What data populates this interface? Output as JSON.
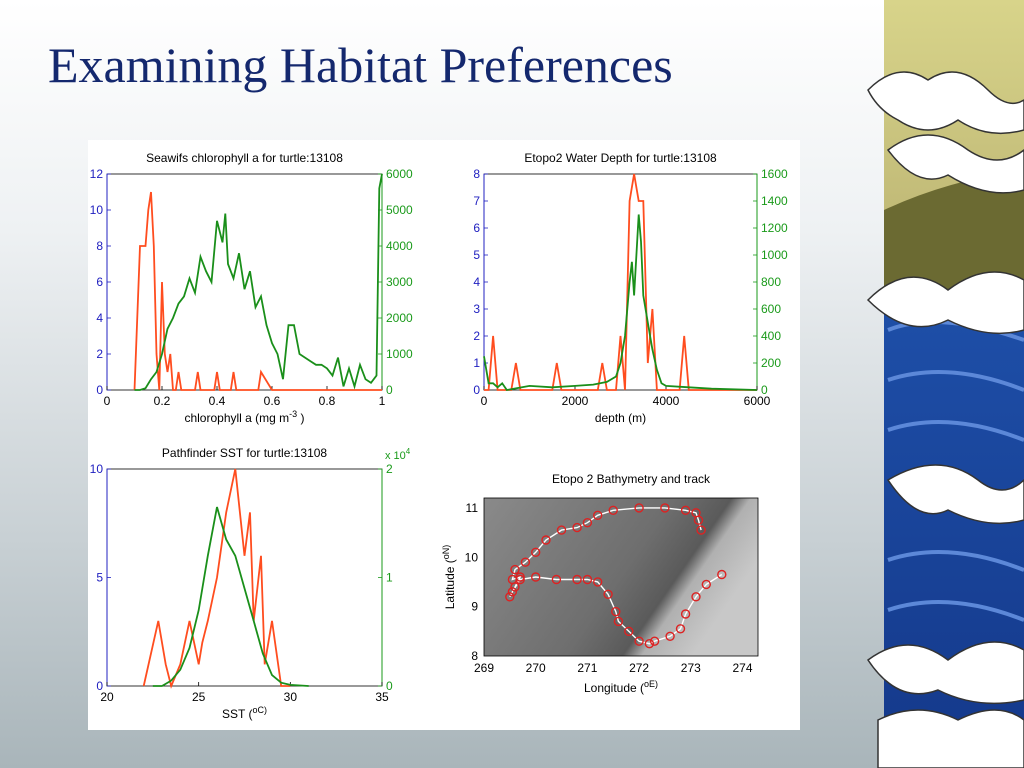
{
  "slide": {
    "title": "Examining Habitat Preferences"
  },
  "colors": {
    "title": "#14286e",
    "series_red": "#ff4d1f",
    "series_green": "#1a8f1a",
    "left_axis": "#2020c0",
    "right_axis": "#1a9a1a",
    "track": "#dd2222"
  },
  "chart_data": [
    {
      "type": "line",
      "title": "Seawifs chlorophyll a for turtle:13108",
      "xlabel": "chlorophyll a (mg m^-3 )",
      "xlim": [
        0,
        1
      ],
      "xticks": [
        "0",
        "0.2",
        "0.4",
        "0.6",
        "0.8",
        "1"
      ],
      "ylim_left": [
        0,
        12
      ],
      "yticks_left": [
        "0",
        "2",
        "4",
        "6",
        "8",
        "10",
        "12"
      ],
      "ylim_right": [
        0,
        6000
      ],
      "yticks_right": [
        "0",
        "1000",
        "2000",
        "3000",
        "4000",
        "5000",
        "6000"
      ],
      "series": [
        {
          "axis": "left",
          "color": "#ff4d1f",
          "x": [
            0.1,
            0.12,
            0.14,
            0.15,
            0.16,
            0.17,
            0.18,
            0.19,
            0.2,
            0.21,
            0.22,
            0.23,
            0.24,
            0.25,
            0.26,
            0.27,
            0.28,
            0.29,
            0.3,
            0.31,
            0.32,
            0.33,
            0.34,
            0.35,
            0.36,
            0.37,
            0.38,
            0.39,
            0.4,
            0.41,
            0.42,
            0.43,
            0.44,
            0.45,
            0.46,
            0.47,
            0.5,
            0.51,
            0.52,
            0.53,
            0.54,
            0.55,
            0.56,
            0.6,
            0.7,
            0.8,
            0.9,
            1.0
          ],
          "y": [
            0,
            8,
            8,
            10,
            11,
            8,
            2,
            0,
            6,
            2,
            1,
            2,
            0,
            0,
            1,
            0,
            0,
            0,
            0,
            0,
            0,
            1,
            0,
            0,
            0,
            0,
            0,
            0,
            1,
            0,
            0,
            0,
            0,
            0,
            1,
            0,
            0,
            0,
            0,
            0,
            0,
            0,
            1,
            0,
            0,
            0,
            0,
            0
          ]
        },
        {
          "axis": "right",
          "color": "#1a8f1a",
          "x": [
            0.1,
            0.12,
            0.14,
            0.16,
            0.18,
            0.2,
            0.22,
            0.24,
            0.26,
            0.28,
            0.3,
            0.32,
            0.34,
            0.36,
            0.38,
            0.4,
            0.42,
            0.43,
            0.44,
            0.46,
            0.48,
            0.5,
            0.52,
            0.54,
            0.56,
            0.58,
            0.6,
            0.62,
            0.64,
            0.66,
            0.68,
            0.7,
            0.72,
            0.74,
            0.76,
            0.78,
            0.8,
            0.82,
            0.84,
            0.86,
            0.88,
            0.9,
            0.92,
            0.94,
            0.96,
            0.98,
            0.99,
            1.0
          ],
          "y": [
            0,
            0,
            50,
            300,
            500,
            1000,
            1700,
            2000,
            2400,
            2600,
            3100,
            2700,
            3700,
            3300,
            3000,
            4700,
            4100,
            4900,
            3500,
            3100,
            3800,
            2800,
            3300,
            2300,
            2600,
            1800,
            1300,
            1000,
            300,
            1800,
            1800,
            1000,
            900,
            800,
            700,
            700,
            600,
            400,
            900,
            100,
            600,
            100,
            700,
            300,
            200,
            400,
            5600,
            6000
          ]
        }
      ]
    },
    {
      "type": "line",
      "title": "Etopo2 Water Depth for turtle:13108",
      "xlabel": "depth (m)",
      "xlim": [
        0,
        6000
      ],
      "xticks": [
        "0",
        "2000",
        "4000",
        "6000"
      ],
      "ylim_left": [
        0,
        8
      ],
      "yticks_left": [
        "0",
        "1",
        "2",
        "3",
        "4",
        "5",
        "6",
        "7",
        "8"
      ],
      "ylim_right": [
        0,
        1600
      ],
      "yticks_right": [
        "0",
        "200",
        "400",
        "600",
        "800",
        "1000",
        "1200",
        "1400",
        "1600"
      ],
      "series": [
        {
          "axis": "left",
          "color": "#ff4d1f",
          "x": [
            0,
            100,
            200,
            300,
            400,
            500,
            600,
            700,
            800,
            1500,
            1600,
            1700,
            2500,
            2600,
            2700,
            2900,
            3000,
            3100,
            3200,
            3300,
            3400,
            3500,
            3600,
            3700,
            3800,
            3900,
            4000,
            4100,
            4200,
            4300,
            4400,
            4500,
            4600,
            6000
          ],
          "y": [
            0,
            0,
            2,
            0,
            0,
            0,
            0,
            1,
            0,
            0,
            1,
            0,
            0,
            1,
            0,
            0,
            2,
            0,
            7,
            8,
            7,
            7,
            1,
            3,
            0,
            0,
            0,
            0,
            0,
            0,
            2,
            0,
            0,
            0
          ]
        },
        {
          "axis": "right",
          "color": "#1a8f1a",
          "x": [
            0,
            100,
            200,
            300,
            400,
            500,
            1000,
            1500,
            2000,
            2400,
            2700,
            2900,
            3000,
            3100,
            3200,
            3250,
            3300,
            3400,
            3450,
            3500,
            3600,
            3700,
            3800,
            3900,
            4000,
            4500,
            5000,
            6000
          ],
          "y": [
            250,
            50,
            50,
            20,
            50,
            0,
            30,
            20,
            30,
            40,
            60,
            100,
            200,
            400,
            800,
            950,
            700,
            1300,
            1100,
            700,
            500,
            300,
            150,
            50,
            30,
            20,
            10,
            0
          ]
        }
      ]
    },
    {
      "type": "line",
      "title": "Pathfinder SST for turtle:13108",
      "xlabel": "SST (^oC)",
      "xlim": [
        20,
        35
      ],
      "xticks": [
        "20",
        "25",
        "30",
        "35"
      ],
      "ylim_left": [
        0,
        10
      ],
      "yticks_left": [
        "0",
        "5",
        "10"
      ],
      "ylim_right": [
        0,
        2
      ],
      "yticks_right": [
        "0",
        "1",
        "2"
      ],
      "right_multiplier": "x 10^4",
      "series": [
        {
          "axis": "left",
          "color": "#ff4d1f",
          "x": [
            22,
            22.8,
            23.2,
            23.5,
            24,
            24.5,
            25,
            25.2,
            25.5,
            26,
            26.5,
            27,
            27.5,
            27.8,
            28,
            28.4,
            28.6,
            29,
            29.5,
            30
          ],
          "y": [
            0,
            3,
            1,
            0,
            1,
            3,
            1,
            2,
            3,
            5,
            8,
            10,
            6,
            8,
            3,
            6,
            1,
            3,
            0,
            0
          ]
        },
        {
          "axis": "right",
          "color": "#1a8f1a",
          "x": [
            22.5,
            23,
            23.5,
            24,
            24.5,
            25,
            25.5,
            26,
            26.5,
            27,
            27.5,
            28,
            28.5,
            29,
            29.5,
            30,
            31
          ],
          "y": [
            0,
            0,
            0.05,
            0.15,
            0.35,
            0.7,
            1.2,
            1.65,
            1.35,
            1.2,
            0.9,
            0.6,
            0.3,
            0.1,
            0.03,
            0.01,
            0
          ]
        }
      ]
    },
    {
      "type": "scatter",
      "title": "Etopo 2 Bathymetry and track",
      "xlabel": "Longitude (^oE)",
      "ylabel": "Latitude (^oN)",
      "xlim": [
        269,
        274.3
      ],
      "ylim": [
        8,
        11.2
      ],
      "xticks": [
        "269",
        "270",
        "271",
        "272",
        "273",
        "274"
      ],
      "yticks": [
        "8",
        "9",
        "10",
        "11"
      ],
      "track": {
        "color": "#dd2222",
        "lon": [
          273.6,
          273.3,
          273.1,
          272.9,
          272.8,
          272.6,
          272.3,
          272.2,
          272.0,
          271.8,
          271.6,
          271.55,
          271.4,
          271.2,
          271.0,
          270.8,
          270.4,
          270.0,
          269.7,
          269.55,
          269.5,
          269.6,
          269.7,
          269.55,
          269.6,
          269.8,
          270.0,
          270.2,
          270.5,
          270.8,
          271.0,
          271.2,
          271.5,
          272.0,
          272.5,
          272.9,
          273.1,
          273.15,
          273.2
        ],
        "lat": [
          9.65,
          9.45,
          9.2,
          8.85,
          8.55,
          8.4,
          8.3,
          8.25,
          8.3,
          8.5,
          8.7,
          8.9,
          9.25,
          9.5,
          9.55,
          9.55,
          9.55,
          9.6,
          9.55,
          9.3,
          9.2,
          9.4,
          9.6,
          9.55,
          9.75,
          9.9,
          10.1,
          10.35,
          10.55,
          10.6,
          10.7,
          10.85,
          10.95,
          11.0,
          11.0,
          10.95,
          10.9,
          10.75,
          10.55
        ]
      },
      "background": "grayscale bathymetry"
    }
  ]
}
